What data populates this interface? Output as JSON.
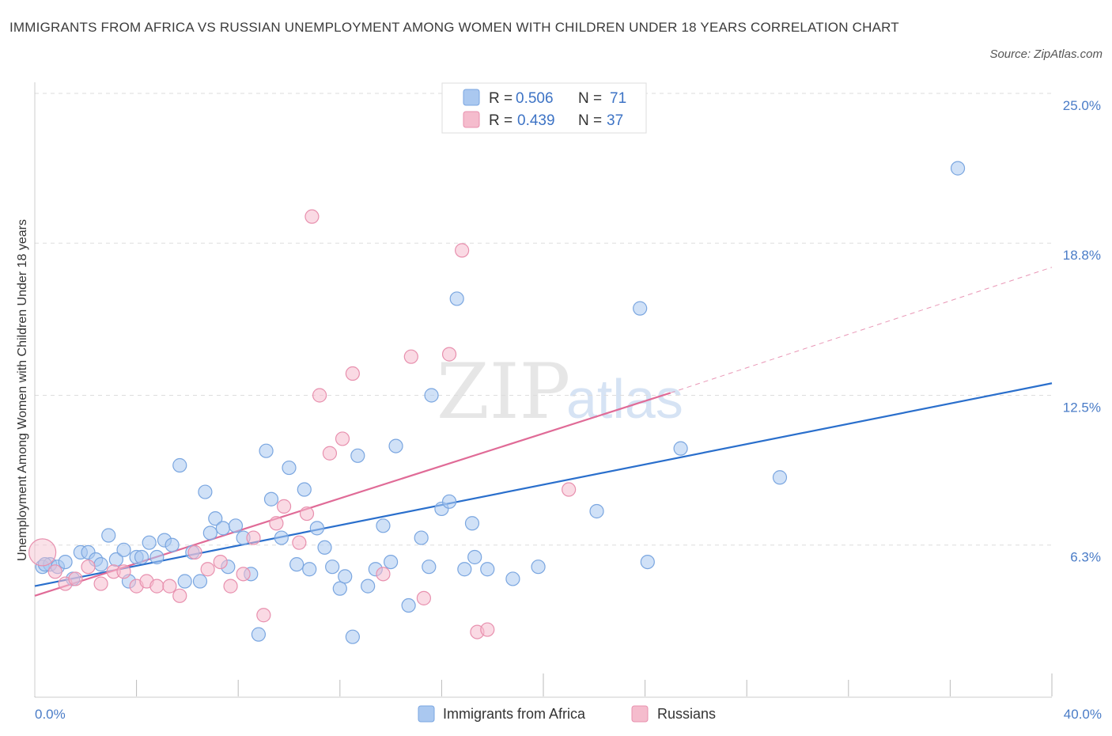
{
  "title": "IMMIGRANTS FROM AFRICA VS RUSSIAN UNEMPLOYMENT AMONG WOMEN WITH CHILDREN UNDER 18 YEARS CORRELATION CHART",
  "source": "Source: ZipAtlas.com",
  "watermark": {
    "zip": "ZIP",
    "atlas": "atlas"
  },
  "colors": {
    "blue_fill": "#aac8f0",
    "blue_stroke": "#7aa6e0",
    "blue_line": "#2a6fcc",
    "pink_fill": "#f5bccd",
    "pink_stroke": "#e890ae",
    "pink_line": "#e06b97",
    "grid": "#dddddd",
    "tick_text": "#4a7cc7"
  },
  "legend": {
    "rows": [
      {
        "r_label": "R = ",
        "r_value": "0.506",
        "n_label": "N = ",
        "n_value": "71"
      },
      {
        "r_label": "R = ",
        "r_value": "0.439",
        "n_label": "N = ",
        "n_value": "37"
      }
    ]
  },
  "chart_data": {
    "type": "scatter",
    "title": "IMMIGRANTS FROM AFRICA VS RUSSIAN UNEMPLOYMENT AMONG WOMEN WITH CHILDREN UNDER 18 YEARS CORRELATION CHART",
    "xlabel": "",
    "ylabel": "Unemployment Among Women with Children Under 18 years",
    "xlim": [
      0,
      40
    ],
    "ylim": [
      0,
      25
    ],
    "x_ticks": [
      "0.0%",
      "40.0%"
    ],
    "y_ticks": [
      {
        "value": 6.3,
        "label": "6.3%"
      },
      {
        "value": 12.5,
        "label": "12.5%"
      },
      {
        "value": 18.8,
        "label": "18.8%"
      },
      {
        "value": 25.0,
        "label": "25.0%"
      }
    ],
    "grid": "horizontal dashed",
    "legend_position": "top-center",
    "series": [
      {
        "name": "Immigrants from Africa",
        "color": "#aac8f0",
        "trend": {
          "x": [
            0,
            40
          ],
          "y": [
            4.6,
            13.0
          ],
          "style": "solid"
        },
        "points": [
          [
            0.3,
            5.4
          ],
          [
            0.6,
            5.5
          ],
          [
            0.9,
            5.4
          ],
          [
            1.2,
            5.6
          ],
          [
            1.5,
            4.9
          ],
          [
            1.8,
            6.0
          ],
          [
            2.1,
            6.0
          ],
          [
            2.4,
            5.7
          ],
          [
            2.6,
            5.5
          ],
          [
            2.9,
            6.7
          ],
          [
            3.2,
            5.7
          ],
          [
            3.5,
            6.1
          ],
          [
            3.7,
            4.8
          ],
          [
            4.0,
            5.8
          ],
          [
            4.2,
            5.8
          ],
          [
            4.5,
            6.4
          ],
          [
            4.8,
            5.8
          ],
          [
            5.1,
            6.5
          ],
          [
            5.4,
            6.3
          ],
          [
            5.7,
            9.6
          ],
          [
            5.9,
            4.8
          ],
          [
            6.2,
            6.0
          ],
          [
            6.5,
            4.8
          ],
          [
            6.7,
            8.5
          ],
          [
            6.9,
            6.8
          ],
          [
            7.1,
            7.4
          ],
          [
            7.4,
            7.0
          ],
          [
            7.6,
            5.4
          ],
          [
            7.9,
            7.1
          ],
          [
            8.2,
            6.6
          ],
          [
            8.5,
            5.1
          ],
          [
            8.8,
            2.6
          ],
          [
            9.1,
            10.2
          ],
          [
            9.3,
            8.2
          ],
          [
            9.7,
            6.6
          ],
          [
            10.0,
            9.5
          ],
          [
            10.3,
            5.5
          ],
          [
            10.6,
            8.6
          ],
          [
            10.8,
            5.3
          ],
          [
            11.1,
            7.0
          ],
          [
            11.4,
            6.2
          ],
          [
            11.7,
            5.4
          ],
          [
            12.0,
            4.5
          ],
          [
            12.2,
            5.0
          ],
          [
            12.5,
            2.5
          ],
          [
            12.7,
            10.0
          ],
          [
            13.1,
            4.6
          ],
          [
            13.4,
            5.3
          ],
          [
            13.7,
            7.1
          ],
          [
            14.0,
            5.6
          ],
          [
            14.2,
            10.4
          ],
          [
            14.7,
            3.8
          ],
          [
            15.2,
            6.6
          ],
          [
            15.5,
            5.4
          ],
          [
            15.6,
            12.5
          ],
          [
            16.0,
            7.8
          ],
          [
            16.3,
            8.1
          ],
          [
            16.6,
            16.5
          ],
          [
            16.9,
            5.3
          ],
          [
            17.2,
            7.2
          ],
          [
            17.3,
            5.8
          ],
          [
            17.8,
            5.3
          ],
          [
            18.8,
            4.9
          ],
          [
            19.8,
            5.4
          ],
          [
            22.1,
            7.7
          ],
          [
            23.8,
            16.1
          ],
          [
            24.1,
            5.6
          ],
          [
            25.4,
            10.3
          ],
          [
            29.3,
            9.1
          ],
          [
            36.3,
            21.9
          ],
          [
            0.4,
            5.5
          ]
        ]
      },
      {
        "name": "Russians",
        "color": "#f5bccd",
        "trend": {
          "x": [
            0,
            25
          ],
          "y": [
            4.2,
            12.6
          ],
          "style": "solid",
          "extension": {
            "x": [
              25,
              40
            ],
            "y": [
              12.6,
              17.8
            ],
            "style": "dashed"
          }
        },
        "points": [
          [
            0.3,
            6.0
          ],
          [
            0.8,
            5.2
          ],
          [
            1.2,
            4.7
          ],
          [
            1.6,
            4.9
          ],
          [
            2.1,
            5.4
          ],
          [
            2.6,
            4.7
          ],
          [
            3.1,
            5.2
          ],
          [
            3.5,
            5.2
          ],
          [
            4.0,
            4.6
          ],
          [
            4.4,
            4.8
          ],
          [
            4.8,
            4.6
          ],
          [
            5.3,
            4.6
          ],
          [
            5.7,
            4.2
          ],
          [
            6.3,
            6.0
          ],
          [
            6.8,
            5.3
          ],
          [
            7.3,
            5.6
          ],
          [
            7.7,
            4.6
          ],
          [
            8.2,
            5.1
          ],
          [
            8.6,
            6.6
          ],
          [
            9.0,
            3.4
          ],
          [
            9.5,
            7.2
          ],
          [
            9.8,
            7.9
          ],
          [
            10.4,
            6.4
          ],
          [
            10.7,
            7.6
          ],
          [
            10.9,
            19.9
          ],
          [
            11.2,
            12.5
          ],
          [
            11.6,
            10.1
          ],
          [
            12.1,
            10.7
          ],
          [
            12.5,
            13.4
          ],
          [
            13.7,
            5.1
          ],
          [
            14.8,
            14.1
          ],
          [
            15.3,
            4.1
          ],
          [
            16.3,
            14.2
          ],
          [
            16.8,
            18.5
          ],
          [
            17.4,
            2.7
          ],
          [
            17.8,
            2.8
          ],
          [
            21.0,
            8.6
          ]
        ]
      }
    ]
  },
  "bottom_legend": [
    "Immigrants from Africa",
    "Russians"
  ]
}
